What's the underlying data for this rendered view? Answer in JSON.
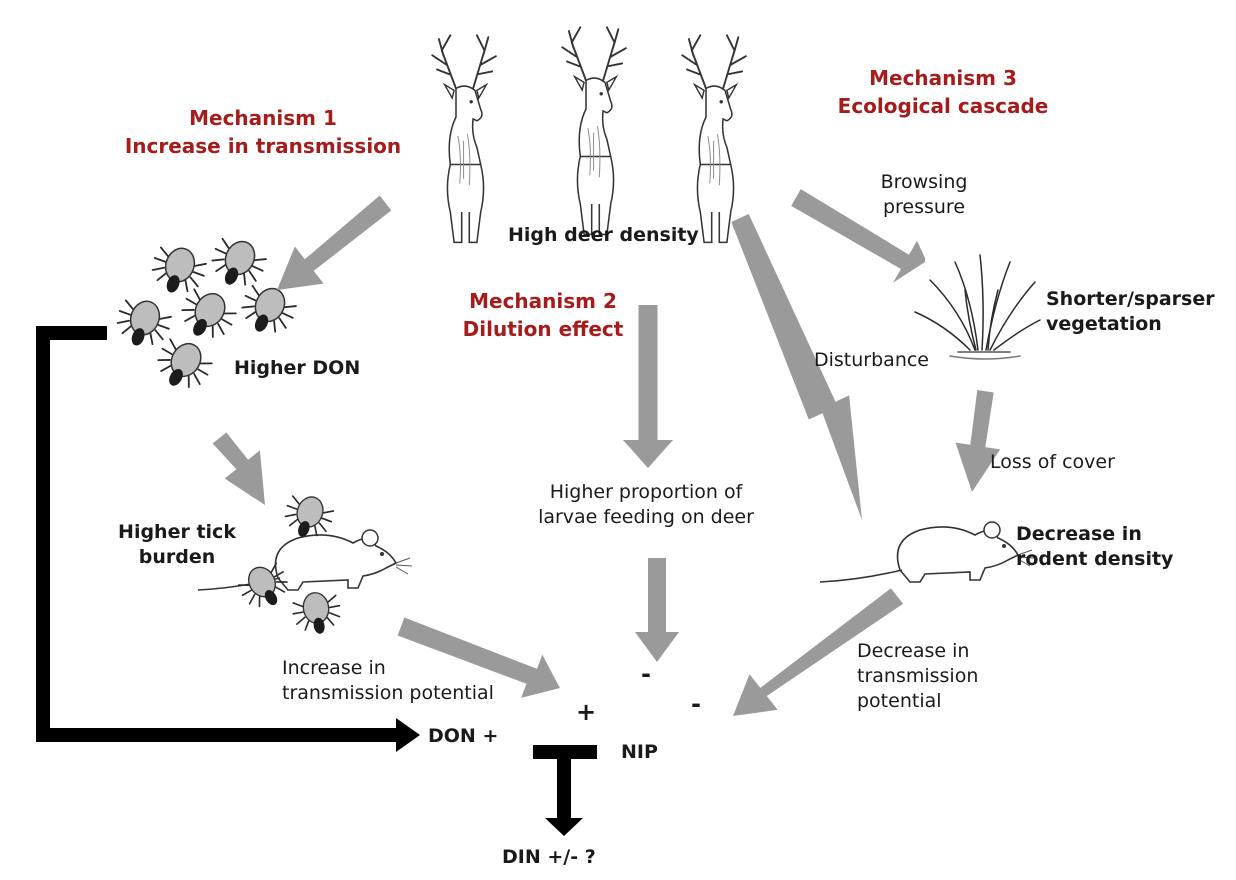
{
  "colors": {
    "arrow": "#9a9a9a",
    "mechanism": "#a51c1c",
    "feedback": "#000000",
    "text": "#1a1a1a"
  },
  "icons": {
    "deer": "deer-illustration",
    "ticks": "tick-cluster-illustration",
    "mouse": "rodent-illustration",
    "vegetation": "grass-tuft-illustration"
  },
  "mechanisms": [
    {
      "line1": "Mechanism 1",
      "line2": "Increase in transmission"
    },
    {
      "line1": "Mechanism 2",
      "line2": "Dilution effect"
    },
    {
      "line1": "Mechanism 3",
      "line2": "Ecological cascade"
    }
  ],
  "nodes": {
    "deer": "High deer density",
    "don": "Higher DON",
    "tick_burden": {
      "line1": "Higher tick",
      "line2": "burden"
    },
    "larvae": {
      "line1": "Higher proportion of",
      "line2": "larvae feeding on deer"
    },
    "vegetation": {
      "line1": "Shorter/sparser",
      "line2": "vegetation"
    },
    "rodent": {
      "line1": "Decrease in",
      "line2": "rodent density"
    },
    "nip": "NIP",
    "don_plus": "DON +",
    "din": "DIN +/- ?"
  },
  "edges": {
    "browsing": {
      "line1": "Browsing",
      "line2": "pressure"
    },
    "disturbance": "Disturbance",
    "loss_of_cover": "Loss of cover",
    "increase_tp": {
      "line1": "Increase in",
      "line2": "transmission potential"
    },
    "decrease_tp": {
      "line1": "Decrease in",
      "line2": "transmission",
      "line3": "potential"
    }
  },
  "signs": {
    "plus": "+",
    "minus_center": "-",
    "minus_right": "-"
  }
}
